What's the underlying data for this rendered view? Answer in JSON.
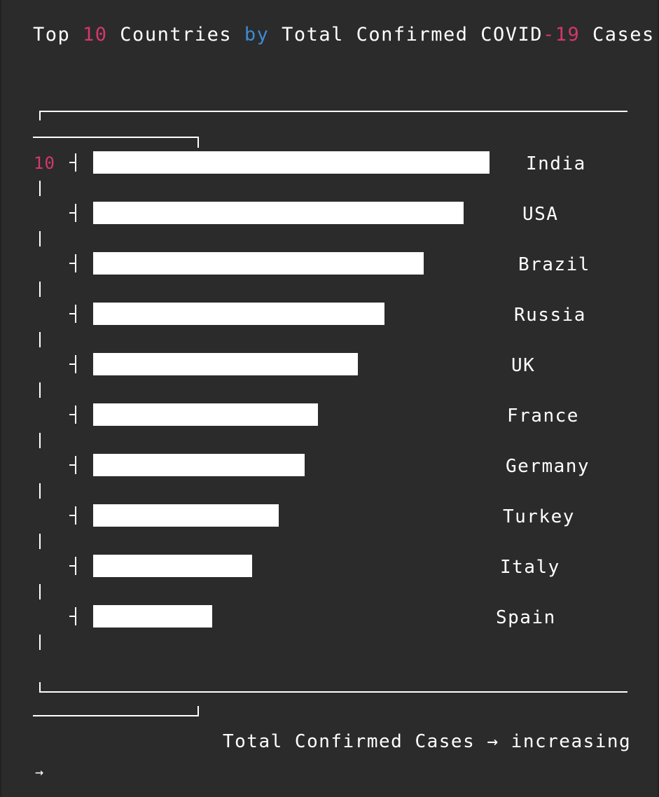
{
  "title": {
    "part1": "Top ",
    "num": "10",
    "part2": " Countries ",
    "kw": "by",
    "part3": " Total Confirmed COVID",
    "num2": "-19",
    "part4": " Cases"
  },
  "colors": {
    "background": "#2b2b2b",
    "bar": "#ffffff",
    "number": "#d4376e",
    "keyword": "#3d8bd4"
  },
  "xlabel": "Total Confirmed Cases → increasing",
  "arrow": "→",
  "chart_data": {
    "type": "bar",
    "orientation": "horizontal",
    "title": "Top 10 Countries by Total Confirmed COVID-19 Cases",
    "xlabel": "Total Confirmed Cases → increasing",
    "ylabel": "",
    "y_tick_label": "10",
    "categories": [
      "India",
      "USA",
      "Brazil",
      "Russia",
      "UK",
      "France",
      "Germany",
      "Turkey",
      "Italy",
      "Spain"
    ],
    "values": [
      566,
      529,
      472,
      416,
      378,
      321,
      302,
      265,
      227,
      170
    ],
    "value_units": "relative bar length (no axis scale printed)",
    "grid": false,
    "legend": "none"
  }
}
